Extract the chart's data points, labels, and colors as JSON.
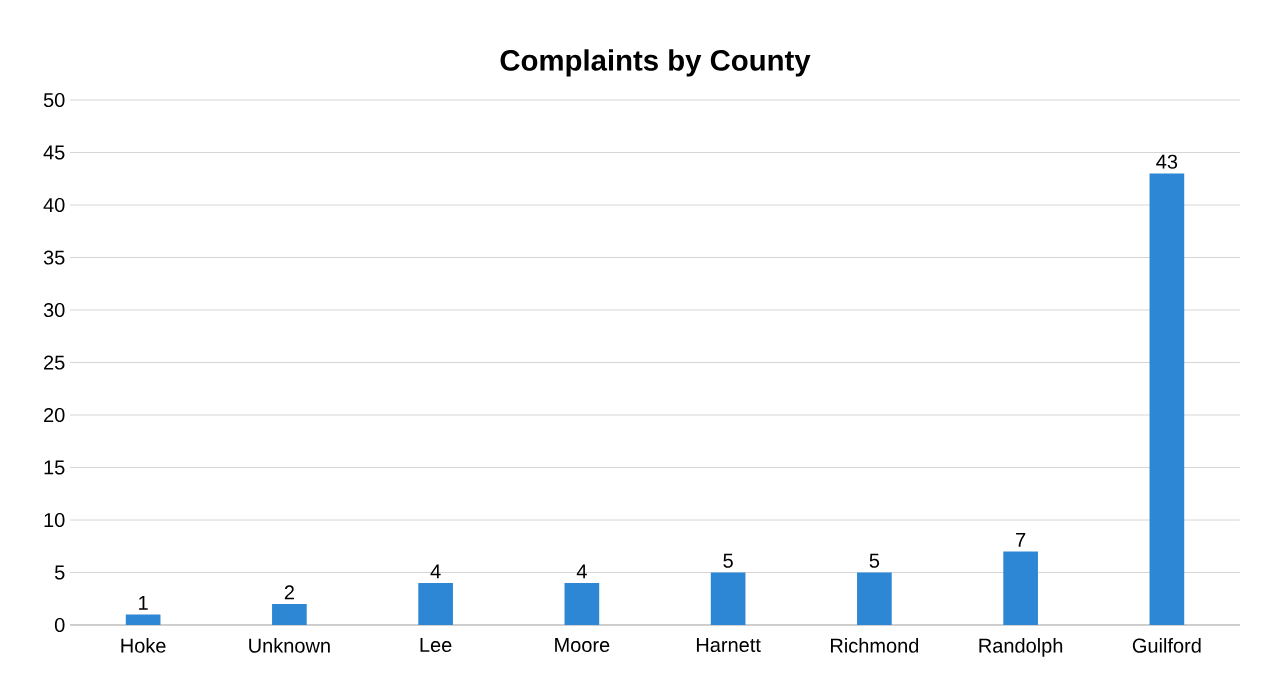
{
  "chart_data": {
    "type": "bar",
    "title": "Complaints by County",
    "categories": [
      "Hoke",
      "Unknown",
      "Lee",
      "Moore",
      "Harnett",
      "Richmond",
      "Randolph",
      "Guilford"
    ],
    "values": [
      1,
      2,
      4,
      4,
      5,
      5,
      7,
      43
    ],
    "color": "#2e87d4",
    "ylim": [
      0,
      50
    ],
    "yticks": [
      0,
      5,
      10,
      15,
      20,
      25,
      30,
      35,
      40,
      45,
      50
    ],
    "grid": "y",
    "data_labels": true
  }
}
